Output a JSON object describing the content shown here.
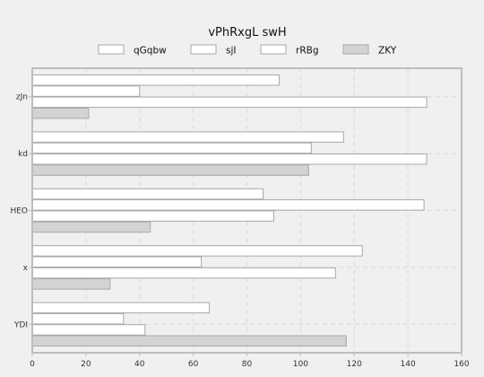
{
  "chart_data": {
    "type": "bar",
    "orientation": "horizontal",
    "title": "vPhRxgL swH",
    "categories": [
      "zJn",
      "kd",
      "HEO",
      "x",
      "YDI"
    ],
    "series": [
      {
        "name": "qGqbw",
        "values": [
          92,
          116,
          86,
          123,
          66
        ],
        "color": "#ffffff"
      },
      {
        "name": "sjI",
        "values": [
          40,
          104,
          146,
          63,
          34
        ],
        "color": "#ffffff"
      },
      {
        "name": "rRBg",
        "values": [
          147,
          147,
          90,
          113,
          42
        ],
        "color": "#ffffff"
      },
      {
        "name": "ZKY",
        "values": [
          21,
          103,
          44,
          29,
          117
        ],
        "color": "#d3d3d3"
      }
    ],
    "xlim": [
      0,
      160
    ],
    "xticks": [
      0,
      20,
      40,
      60,
      80,
      100,
      120,
      140,
      160
    ],
    "grid": true,
    "legend_position": "top"
  }
}
